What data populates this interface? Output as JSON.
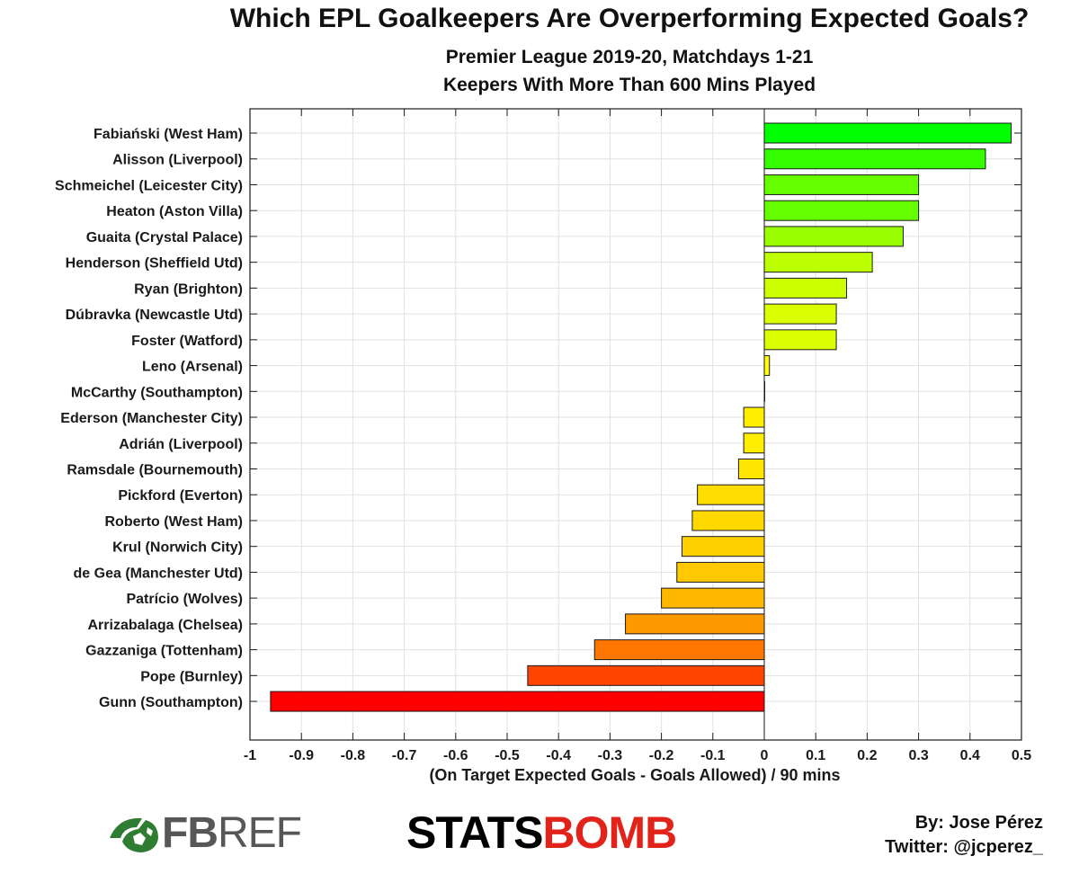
{
  "chart_data": {
    "type": "bar",
    "orientation": "horizontal",
    "title": "Which EPL Goalkeepers Are Overperforming Expected Goals?",
    "subtitle": [
      "Premier League 2019-20, Matchdays 1-21",
      "Keepers With More Than 600 Mins Played"
    ],
    "xlabel": "(On Target Expected Goals - Goals Allowed) / 90 mins",
    "ylabel": "",
    "xlim": [
      -1,
      0.5
    ],
    "xticks": [
      -1,
      -0.9,
      -0.8,
      -0.7,
      -0.6,
      -0.5,
      -0.4,
      -0.3,
      -0.2,
      -0.1,
      0,
      0.1,
      0.2,
      0.3,
      0.4,
      0.5
    ],
    "xtick_labels": [
      "-1",
      "-0.9",
      "-0.8",
      "-0.7",
      "-0.6",
      "-0.5",
      "-0.4",
      "-0.3",
      "-0.2",
      "-0.1",
      "0",
      "0.1",
      "0.2",
      "0.3",
      "0.4",
      "0.5"
    ],
    "grid": true,
    "categories": [
      "Fabiański (West Ham)",
      "Alisson (Liverpool)",
      "Schmeichel (Leicester City)",
      "Heaton (Aston Villa)",
      "Guaita (Crystal Palace)",
      "Henderson (Sheffield Utd)",
      "Ryan (Brighton)",
      "Dúbravka (Newcastle Utd)",
      "Foster (Watford)",
      "Leno (Arsenal)",
      "McCarthy (Southampton)",
      "Ederson (Manchester City)",
      "Adrián (Liverpool)",
      "Ramsdale (Bournemouth)",
      "Pickford (Everton)",
      "Roberto (West Ham)",
      "Krul (Norwich City)",
      "de Gea (Manchester Utd)",
      "Patrício (Wolves)",
      "Arrizabalaga (Chelsea)",
      "Gazzaniga (Tottenham)",
      "Pope (Burnley)",
      "Gunn (Southampton)"
    ],
    "values": [
      0.48,
      0.43,
      0.3,
      0.3,
      0.27,
      0.21,
      0.16,
      0.14,
      0.14,
      0.01,
      0.0,
      -0.04,
      -0.04,
      -0.05,
      -0.13,
      -0.14,
      -0.16,
      -0.17,
      -0.2,
      -0.27,
      -0.33,
      -0.46,
      -0.96
    ],
    "colors": [
      "#00ff00",
      "#33ff00",
      "#66ff00",
      "#66ff00",
      "#99ff00",
      "#bbff00",
      "#ccff00",
      "#d9ff00",
      "#d9ff00",
      "#ffff00",
      "#ffff00",
      "#ffee00",
      "#ffee00",
      "#ffe600",
      "#ffdd00",
      "#ffd800",
      "#ffd000",
      "#ffc800",
      "#ffb800",
      "#ff9900",
      "#ff7700",
      "#ff4400",
      "#ff0000"
    ]
  },
  "footer": {
    "fbref_fb": "FB",
    "fbref_ref": "REF",
    "statsbomb_stats": "STATS",
    "statsbomb_bomb": "BOMB",
    "credit_by": "By: Jose Pérez",
    "credit_twitter": "Twitter: @jcperez_"
  },
  "colors": {
    "fbref_green": "#2e7d32",
    "fbref_gray": "#575757",
    "statsbomb_red": "#e2231a"
  }
}
